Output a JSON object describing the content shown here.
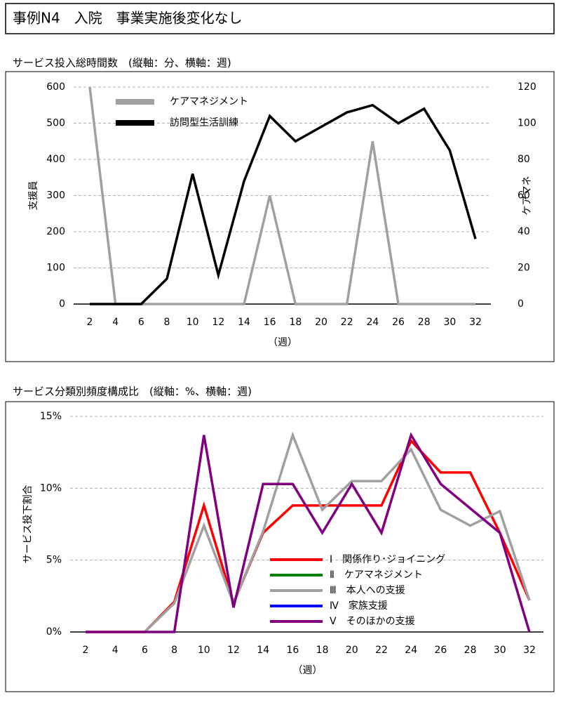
{
  "title": "事例N4　入院　事業実施後変化なし",
  "chart_data": [
    {
      "type": "line",
      "title": "サービス投入総時間数　(縦軸：分、横軸：週)",
      "x_label": "（週）",
      "y_label": "支援員",
      "y2_label": "ケアマネ",
      "categories": [
        "2",
        "4",
        "6",
        "8",
        "10",
        "12",
        "14",
        "16",
        "18",
        "20",
        "22",
        "24",
        "26",
        "28",
        "30",
        "32"
      ],
      "ylim": [
        0,
        600
      ],
      "yticks": [
        0,
        100,
        200,
        300,
        400,
        500,
        600
      ],
      "y2lim": [
        0,
        120
      ],
      "y2ticks": [
        0,
        20,
        40,
        60,
        80,
        100,
        120
      ],
      "grid": true,
      "legend": "upper left",
      "series": [
        {
          "name": "ケアマネジメント",
          "color": "#a0a0a0",
          "axis": "y2",
          "values": [
            120,
            0,
            0,
            0,
            0,
            0,
            0,
            60,
            0,
            0,
            0,
            90,
            0,
            0,
            0,
            0
          ]
        },
        {
          "name": "訪問型生活訓練",
          "color": "#000000",
          "values": [
            0,
            0,
            0,
            70,
            360,
            80,
            340,
            520,
            450,
            490,
            530,
            550,
            500,
            540,
            425,
            180
          ]
        }
      ]
    },
    {
      "type": "line",
      "title": "サービス分類別頻度構成比　(縦軸：%、横軸：週)",
      "x_label": "（週）",
      "y_label": "サービス投下割合",
      "categories": [
        "2",
        "4",
        "6",
        "8",
        "10",
        "12",
        "14",
        "16",
        "18",
        "20",
        "22",
        "24",
        "26",
        "28",
        "30",
        "32"
      ],
      "ylim": [
        0,
        15
      ],
      "yticks": [
        {
          "value": 0,
          "label": "0%"
        },
        {
          "value": 5,
          "label": "5%"
        },
        {
          "value": 10,
          "label": "10%"
        },
        {
          "value": 15,
          "label": "15%"
        }
      ],
      "grid": true,
      "legend": "lower center",
      "series": [
        {
          "name": "Ⅰ　関係作り･ジョイニング",
          "color": "#ff0000",
          "values": [
            0,
            0,
            0,
            2.1,
            8.8,
            2.0,
            6.9,
            8.8,
            8.8,
            8.8,
            8.8,
            13.3,
            11.1,
            11.1,
            6.9,
            2.2
          ]
        },
        {
          "name": "Ⅱ　ケアマネジメント",
          "color": "#008000",
          "values": [
            null,
            null,
            null,
            null,
            null,
            null,
            null,
            null,
            null,
            null,
            null,
            null,
            null,
            null,
            null,
            null
          ]
        },
        {
          "name": "Ⅲ　本人への支援",
          "color": "#a0a0a0",
          "values": [
            0,
            0,
            0,
            2.0,
            7.4,
            2.0,
            7.0,
            13.7,
            8.5,
            10.5,
            10.5,
            12.7,
            8.5,
            7.4,
            8.4,
            2.2
          ]
        },
        {
          "name": "Ⅳ　家族支援",
          "color": "#0000ff",
          "values": [
            null,
            null,
            null,
            null,
            null,
            null,
            null,
            null,
            null,
            null,
            null,
            null,
            null,
            null,
            null,
            null
          ]
        },
        {
          "name": "Ⅴ　そのほかの支援",
          "color": "#800080",
          "values": [
            0,
            0,
            0,
            0,
            13.7,
            1.7,
            10.3,
            10.3,
            6.9,
            10.3,
            6.9,
            13.7,
            10.3,
            8.6,
            6.9,
            0
          ]
        }
      ]
    }
  ]
}
